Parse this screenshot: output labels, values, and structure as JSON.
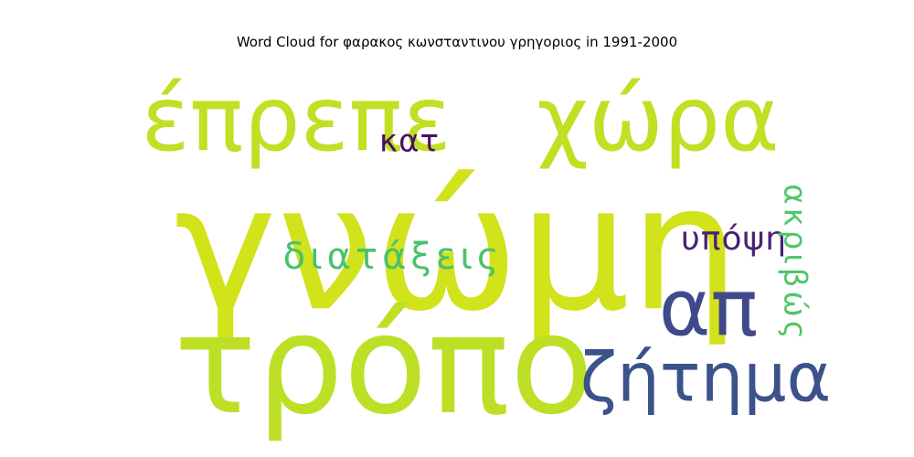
{
  "chart_data": {
    "type": "wordcloud",
    "title": "Word Cloud for φαρακος κωνσταντινου γρηγοριος in 1991-2000",
    "words": [
      {
        "text": "γνώμη",
        "color": "#d2e21b"
      },
      {
        "text": "τρόπο",
        "color": "#bddf26"
      },
      {
        "text": "έπρεπε",
        "color": "#c2df23"
      },
      {
        "text": "χώρα",
        "color": "#c2df23"
      },
      {
        "text": "απ",
        "color": "#3e4a89"
      },
      {
        "text": "ζήτημα",
        "color": "#3b528b"
      },
      {
        "text": "διατάξεις",
        "color": "#4ac16d"
      },
      {
        "text": "υπόψη",
        "color": "#482173"
      },
      {
        "text": "κατ",
        "color": "#471063"
      },
      {
        "text": "ακριβώς",
        "color": "#52c569"
      }
    ]
  }
}
